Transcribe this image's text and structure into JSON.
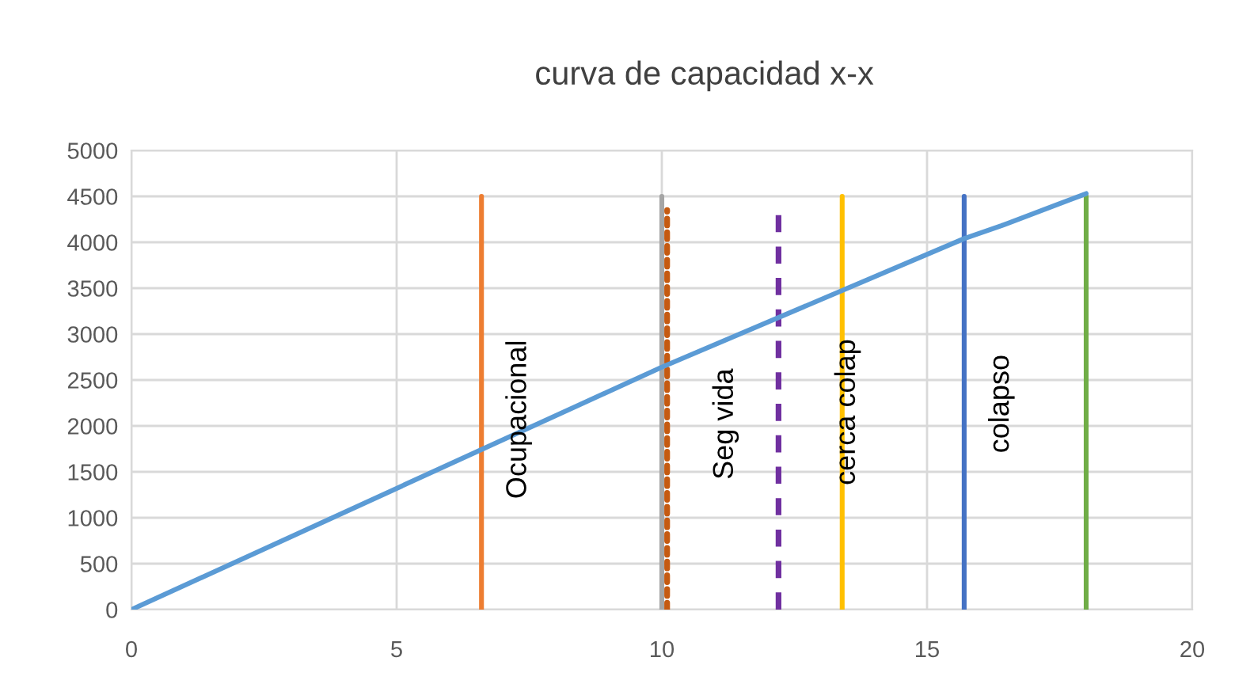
{
  "chart_data": {
    "type": "line",
    "title": "curva de capacidad x-x",
    "xlim": [
      0,
      20
    ],
    "xticks": [
      0,
      5,
      10,
      15,
      20
    ],
    "ylim": [
      0,
      5000
    ],
    "yticks": [
      0,
      500,
      1000,
      1500,
      2000,
      2500,
      3000,
      3500,
      4000,
      4500,
      5000
    ],
    "grid": true,
    "marker": "none",
    "series": [
      {
        "color": "#5b9bd5",
        "x": [
          0,
          10,
          15.7,
          16.4,
          18
        ],
        "values": [
          0,
          2640,
          4040,
          4180,
          4530
        ],
        "line_style": "solid"
      },
      {
        "color": "#ed7d31",
        "x": [
          6.6,
          6.6
        ],
        "values": [
          0,
          4500
        ],
        "line_style": "solid"
      },
      {
        "color": "#a5a5a5",
        "x": [
          10,
          10
        ],
        "values": [
          0,
          4500
        ],
        "line_style": "solid"
      },
      {
        "color": "#c55a11",
        "x": [
          10.1,
          10.1
        ],
        "values": [
          0,
          4350
        ],
        "line_style": "dotted"
      },
      {
        "color": "#7030a0",
        "x": [
          12.2,
          12.2
        ],
        "values": [
          0,
          4350
        ],
        "line_style": "dashed"
      },
      {
        "color": "#ffc000",
        "x": [
          13.4,
          13.4
        ],
        "values": [
          0,
          4500
        ],
        "line_style": "solid"
      },
      {
        "color": "#4472c4",
        "x": [
          15.7,
          15.7
        ],
        "values": [
          0,
          4500
        ],
        "line_style": "solid"
      },
      {
        "color": "#70ad47",
        "x": [
          18,
          18
        ],
        "values": [
          0,
          4500
        ],
        "line_style": "solid"
      }
    ],
    "annotations": [
      "Ocupacional",
      "Seg vida",
      "cerca colap",
      "colapso"
    ]
  }
}
